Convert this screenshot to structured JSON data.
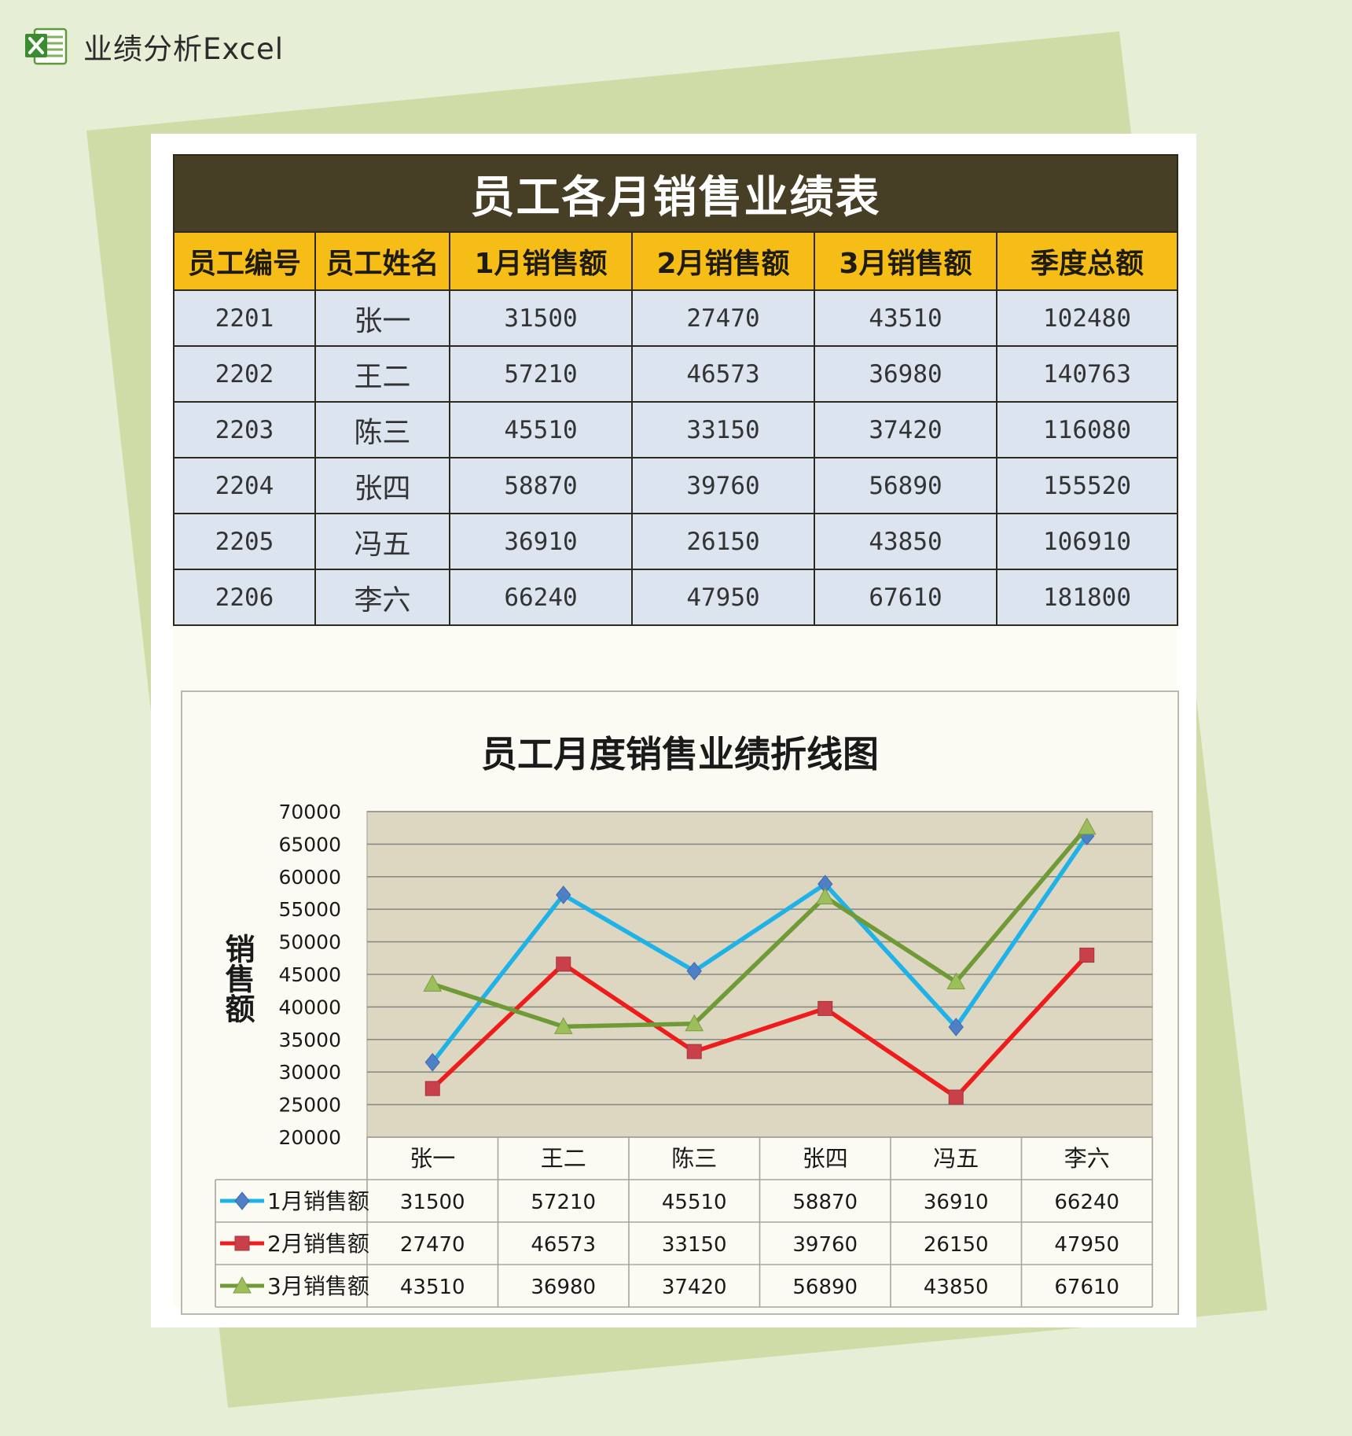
{
  "app": {
    "title": "业绩分析Excel",
    "icon": "excel-icon"
  },
  "colors": {
    "page_bg": "#e6eed6",
    "shape_bg": "#cfdca7",
    "title_bg": "#463f25",
    "header_bg": "#f6bd16",
    "row_bg": "#dbe4ef",
    "plot_bg": "#ddd6c1",
    "series": [
      "#1fb2e8",
      "#ee1c1c",
      "#6f9a36"
    ]
  },
  "table": {
    "title": "员工各月销售业绩表",
    "headers": [
      "员工编号",
      "员工姓名",
      "1月销售额",
      "2月销售额",
      "3月销售额",
      "季度总额"
    ],
    "rows": [
      [
        "2201",
        "张一",
        "31500",
        "27470",
        "43510",
        "102480"
      ],
      [
        "2202",
        "王二",
        "57210",
        "46573",
        "36980",
        "140763"
      ],
      [
        "2203",
        "陈三",
        "45510",
        "33150",
        "37420",
        "116080"
      ],
      [
        "2204",
        "张四",
        "58870",
        "39760",
        "56890",
        "155520"
      ],
      [
        "2205",
        "冯五",
        "36910",
        "26150",
        "43850",
        "106910"
      ],
      [
        "2206",
        "李六",
        "66240",
        "47950",
        "67610",
        "181800"
      ]
    ]
  },
  "chart_data": {
    "type": "line",
    "title": "员工月度销售业绩折线图",
    "xlabel": "",
    "ylabel": "销售额",
    "categories": [
      "张一",
      "王二",
      "陈三",
      "张四",
      "冯五",
      "李六"
    ],
    "ylim": [
      20000,
      70000
    ],
    "ytick_step": 5000,
    "yticks": [
      "20000",
      "25000",
      "30000",
      "35000",
      "40000",
      "45000",
      "50000",
      "55000",
      "60000",
      "65000",
      "70000"
    ],
    "grid": true,
    "legend": "data-table-bottom",
    "series": [
      {
        "name": "1月销售额",
        "marker": "diamond",
        "color": "#1fb2e8",
        "values": [
          31500,
          57210,
          45510,
          58870,
          36910,
          66240
        ]
      },
      {
        "name": "2月销售额",
        "marker": "square",
        "color": "#ee1c1c",
        "values": [
          27470,
          46573,
          33150,
          39760,
          26150,
          47950
        ]
      },
      {
        "name": "3月销售额",
        "marker": "triangle",
        "color": "#6f9a36",
        "values": [
          43510,
          36980,
          37420,
          56890,
          43850,
          67610
        ]
      }
    ]
  }
}
